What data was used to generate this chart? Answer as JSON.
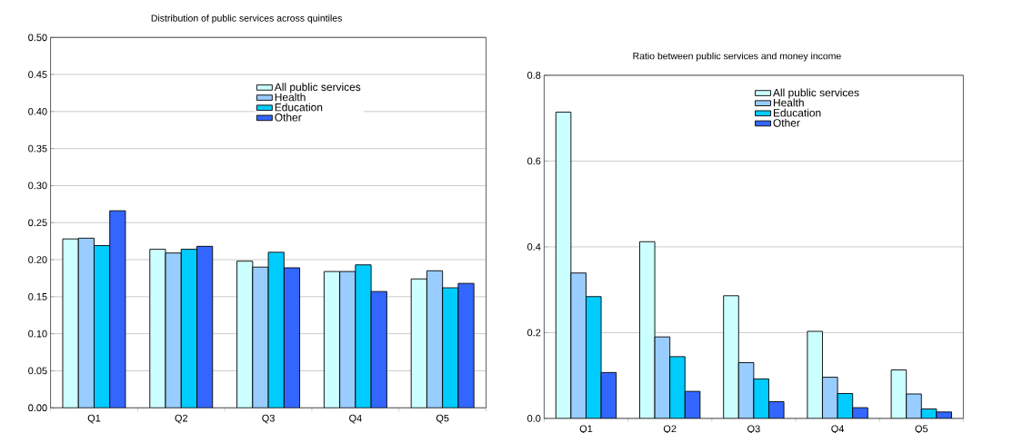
{
  "chart_data": [
    {
      "type": "bar",
      "title": "Distribution of public services across quintiles",
      "categories": [
        "Q1",
        "Q2",
        "Q3",
        "Q4",
        "Q5"
      ],
      "series": [
        {
          "name": "All public services",
          "color": "#ccffff",
          "values": [
            0.228,
            0.214,
            0.198,
            0.184,
            0.174
          ]
        },
        {
          "name": "Health",
          "color": "#99ccff",
          "values": [
            0.229,
            0.209,
            0.19,
            0.184,
            0.185
          ]
        },
        {
          "name": "Education",
          "color": "#00ccff",
          "values": [
            0.219,
            0.214,
            0.21,
            0.193,
            0.162
          ]
        },
        {
          "name": "Other",
          "color": "#3366ff",
          "values": [
            0.266,
            0.218,
            0.189,
            0.157,
            0.168
          ]
        }
      ],
      "ylim": [
        0,
        0.5
      ],
      "yticks": [
        {
          "value": 0,
          "label": "0.00"
        },
        {
          "value": 0.05,
          "label": "0.05"
        },
        {
          "value": 0.1,
          "label": "0.10"
        },
        {
          "value": 0.15,
          "label": "0.15"
        },
        {
          "value": 0.2,
          "label": "0.20"
        },
        {
          "value": 0.25,
          "label": "0.25"
        },
        {
          "value": 0.3,
          "label": "0.30"
        },
        {
          "value": 0.35,
          "label": "0.35"
        },
        {
          "value": 0.4,
          "label": "0.40"
        },
        {
          "value": 0.45,
          "label": "0.45"
        },
        {
          "value": 0.5,
          "label": "0.50"
        }
      ],
      "grid": "y",
      "legend": "top right"
    },
    {
      "type": "bar",
      "title": "Ratio between public services and money income",
      "categories": [
        "Q1",
        "Q2",
        "Q3",
        "Q4",
        "Q5"
      ],
      "series": [
        {
          "name": "All public services",
          "color": "#ccffff",
          "values": [
            0.714,
            0.412,
            0.286,
            0.203,
            0.113
          ]
        },
        {
          "name": "Health",
          "color": "#99ccff",
          "values": [
            0.339,
            0.19,
            0.13,
            0.096,
            0.057
          ]
        },
        {
          "name": "Education",
          "color": "#00ccff",
          "values": [
            0.284,
            0.144,
            0.092,
            0.058,
            0.022
          ]
        },
        {
          "name": "Other",
          "color": "#3366ff",
          "values": [
            0.107,
            0.063,
            0.039,
            0.025,
            0.015
          ]
        }
      ],
      "ylim": [
        0,
        0.8
      ],
      "yticks": [
        {
          "value": 0,
          "label": "0.0"
        },
        {
          "value": 0.2,
          "label": "0.2"
        },
        {
          "value": 0.4,
          "label": "0.4"
        },
        {
          "value": 0.6,
          "label": "0.6"
        },
        {
          "value": 0.8,
          "label": "0.8"
        }
      ],
      "grid": "y",
      "legend": "top right"
    }
  ]
}
